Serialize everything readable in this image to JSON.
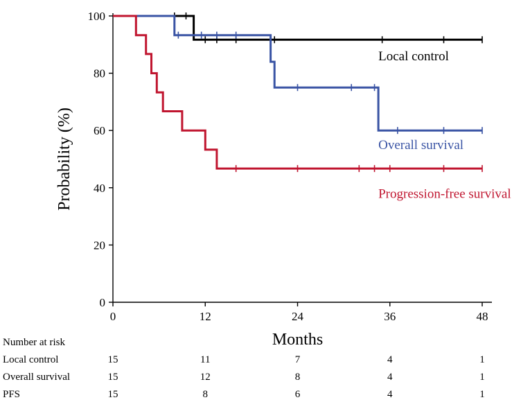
{
  "chart_data": {
    "type": "line",
    "subtype": "kaplan-meier",
    "xlabel": "Months",
    "ylabel": "Probability (%)",
    "xlim": [
      0,
      48
    ],
    "ylim": [
      0,
      100
    ],
    "xticks": [
      0,
      12,
      24,
      36,
      48
    ],
    "yticks": [
      0,
      20,
      40,
      60,
      80,
      100
    ],
    "grid": false,
    "series": [
      {
        "name": "Local control",
        "color": "#000000",
        "steps": [
          [
            0,
            100
          ],
          [
            10.5,
            100
          ],
          [
            10.5,
            91.7
          ],
          [
            48,
            91.7
          ]
        ],
        "censors": [
          [
            8,
            100
          ],
          [
            9.5,
            100
          ],
          [
            12,
            91.7
          ],
          [
            13.5,
            91.7
          ],
          [
            16,
            91.7
          ],
          [
            21,
            91.7
          ],
          [
            35,
            91.7
          ],
          [
            43,
            91.7
          ],
          [
            48,
            91.7
          ]
        ]
      },
      {
        "name": "Overall survival",
        "color": "#3953a4",
        "steps": [
          [
            0,
            100
          ],
          [
            8,
            100
          ],
          [
            8,
            93.3
          ],
          [
            20.5,
            93.3
          ],
          [
            20.5,
            84
          ],
          [
            21,
            84
          ],
          [
            21,
            75
          ],
          [
            34.5,
            75
          ],
          [
            34.5,
            60
          ],
          [
            48,
            60
          ]
        ],
        "censors": [
          [
            8.5,
            93.3
          ],
          [
            11.5,
            93.3
          ],
          [
            13.5,
            93.3
          ],
          [
            16,
            93.3
          ],
          [
            24,
            75
          ],
          [
            31,
            75
          ],
          [
            34,
            75
          ],
          [
            37,
            60
          ],
          [
            43,
            60
          ],
          [
            48,
            60
          ]
        ]
      },
      {
        "name": "Progression-free survival",
        "color": "#c0152f",
        "steps": [
          [
            0,
            100
          ],
          [
            3,
            100
          ],
          [
            3,
            93.3
          ],
          [
            4.3,
            93.3
          ],
          [
            4.3,
            86.7
          ],
          [
            5,
            86.7
          ],
          [
            5,
            80
          ],
          [
            5.7,
            80
          ],
          [
            5.7,
            73.3
          ],
          [
            6.5,
            73.3
          ],
          [
            6.5,
            66.7
          ],
          [
            9,
            66.7
          ],
          [
            9,
            60
          ],
          [
            12,
            60
          ],
          [
            12,
            53.3
          ],
          [
            13.5,
            53.3
          ],
          [
            13.5,
            46.7
          ],
          [
            48,
            46.7
          ]
        ],
        "censors": [
          [
            16,
            46.7
          ],
          [
            24,
            46.7
          ],
          [
            32,
            46.7
          ],
          [
            34,
            46.7
          ],
          [
            36,
            46.7
          ],
          [
            43,
            46.7
          ],
          [
            48,
            46.7
          ]
        ]
      }
    ],
    "annotations": [
      {
        "series": 0,
        "text": "Local control",
        "x": 34.5,
        "y": 84.5
      },
      {
        "series": 1,
        "text": "Overall survival",
        "x": 34.5,
        "y": 53.5
      },
      {
        "series": 2,
        "text": "Progression-free survival",
        "x": 34.5,
        "y": 36.5
      }
    ],
    "risk_table": {
      "header": "Number at risk",
      "rows": [
        {
          "label": "Local control",
          "values": [
            "15",
            "11",
            "7",
            "4",
            "1"
          ]
        },
        {
          "label": "Overall survival",
          "values": [
            "15",
            "12",
            "8",
            "4",
            "1"
          ]
        },
        {
          "label": "PFS",
          "values": [
            "15",
            "8",
            "6",
            "4",
            "1"
          ]
        }
      ]
    }
  }
}
